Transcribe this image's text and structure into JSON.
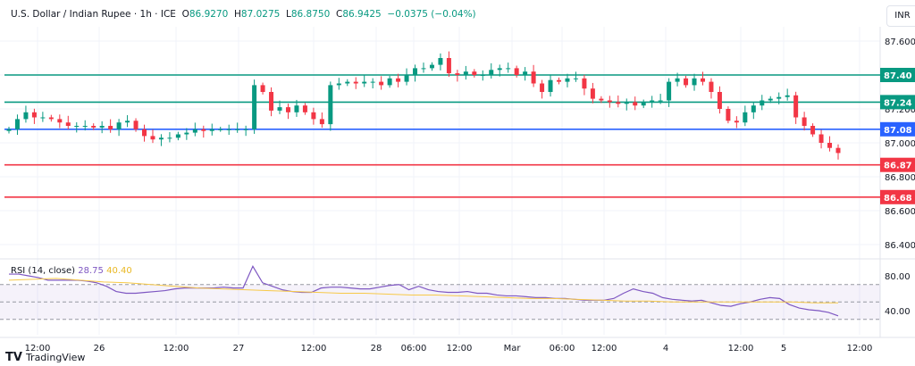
{
  "header": {
    "symbol": "U.S. Dollar / Indian Rupee · 1h · ICE",
    "o_label": "O",
    "o": "86.9270",
    "h_label": "H",
    "h": "87.0275",
    "l_label": "L",
    "l": "86.8750",
    "c_label": "C",
    "c": "86.9425",
    "change": "−0.0375 (−0.04%)"
  },
  "currency_button": "INR",
  "rsi": {
    "label": "RSI (14, close)",
    "value": "28.75",
    "ma_value": "40.40",
    "axis": [
      "80.00",
      "40.00"
    ]
  },
  "branding": "TradingView",
  "colors": {
    "up": "#089981",
    "down": "#f23645",
    "blue": "#2962ff",
    "red_line": "#d32f3f",
    "rsi": "#7e57c2",
    "rsi_ma": "#f7c948"
  },
  "chart_data": {
    "type": "candlestick",
    "price_axis": [
      "87.600",
      "87.200",
      "87.000",
      "86.800",
      "86.600",
      "86.400"
    ],
    "ylim": [
      86.4,
      87.6
    ],
    "time_axis": [
      "12:00",
      "26",
      "12:00",
      "27",
      "12:00",
      "28",
      "06:00",
      "12:00",
      "Mar",
      "06:00",
      "12:00",
      "4",
      "12:00",
      "5",
      "12:00"
    ],
    "levels": [
      {
        "value": 87.4,
        "label": "87.40",
        "color": "#089981"
      },
      {
        "value": 87.24,
        "label": "87.24",
        "color": "#089981"
      },
      {
        "value": 87.08,
        "label": "87.08",
        "color": "#2962ff"
      },
      {
        "value": 86.87,
        "label": "86.87",
        "color": "#f23645"
      },
      {
        "value": 86.68,
        "label": "86.68",
        "color": "#f23645"
      }
    ],
    "closes": [
      87.08,
      87.14,
      87.18,
      87.15,
      87.15,
      87.14,
      87.12,
      87.1,
      87.1,
      87.1,
      87.09,
      87.1,
      87.08,
      87.12,
      87.13,
      87.08,
      87.04,
      87.02,
      87.03,
      87.03,
      87.05,
      87.06,
      87.08,
      87.07,
      87.08,
      87.08,
      87.08,
      87.08,
      87.08,
      87.34,
      87.3,
      87.19,
      87.21,
      87.18,
      87.22,
      87.18,
      87.14,
      87.11,
      87.34,
      87.35,
      87.36,
      87.35,
      87.36,
      87.36,
      87.34,
      87.38,
      87.36,
      87.4,
      87.44,
      87.44,
      87.46,
      87.5,
      87.41,
      87.4,
      87.42,
      87.4,
      87.4,
      87.43,
      87.44,
      87.44,
      87.4,
      87.42,
      87.35,
      87.3,
      87.37,
      87.36,
      87.38,
      87.38,
      87.32,
      87.26,
      87.25,
      87.24,
      87.23,
      87.24,
      87.22,
      87.24,
      87.25,
      87.25,
      87.36,
      87.38,
      87.34,
      87.38,
      87.36,
      87.3,
      87.2,
      87.13,
      87.12,
      87.18,
      87.22,
      87.25,
      87.26,
      87.27,
      87.28,
      87.15,
      87.1,
      87.05,
      87.0,
      86.97,
      86.94
    ],
    "rsi_values": [
      82,
      82,
      80,
      78,
      75,
      75,
      75,
      75,
      74,
      72,
      68,
      62,
      60,
      60,
      61,
      62,
      63,
      65,
      66,
      66,
      66,
      66,
      67,
      66,
      66,
      91,
      72,
      68,
      64,
      62,
      61,
      61,
      66,
      67,
      67,
      66,
      65,
      65,
      67,
      69,
      70,
      64,
      68,
      64,
      62,
      61,
      61,
      62,
      60,
      60,
      58,
      57,
      57,
      56,
      55,
      55,
      54,
      54,
      53,
      52,
      52,
      52,
      54,
      60,
      65,
      62,
      60,
      55,
      53,
      52,
      51,
      52,
      49,
      46,
      45,
      48,
      50,
      53,
      55,
      54,
      47,
      43,
      41,
      40,
      38,
      34
    ],
    "rsi_ma": [
      75,
      76,
      77,
      75,
      73,
      72,
      70,
      68,
      66,
      65,
      64,
      63,
      62,
      61,
      60,
      60,
      59,
      58,
      58,
      57,
      56,
      55,
      54,
      54,
      53,
      52,
      51,
      51,
      50,
      50,
      50,
      50,
      50,
      50,
      49,
      49
    ]
  }
}
